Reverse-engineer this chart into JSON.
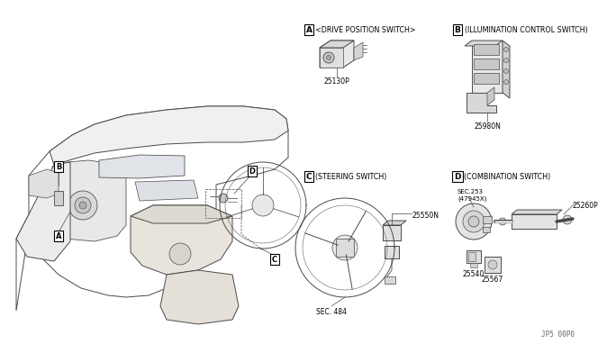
{
  "bg_color": "#ffffff",
  "lc": "#4a4a4a",
  "tc": "#000000",
  "section_A_label": "A",
  "section_A_title": "<DRIVE POSITION SWITCH>",
  "section_B_label": "B",
  "section_B_title": "(ILLUMINATION CONTROL SWITCH)",
  "section_C_label": "C",
  "section_C_title": "(STEERING SWITCH)",
  "section_D_label": "D",
  "section_D_title": "(COMBINATION SWITCH)",
  "part_A": "25130P",
  "part_B": "25980N",
  "part_C1": "25550N",
  "part_C2": "SEC. 484",
  "part_D1": "SEC.253\n(47945X)",
  "part_D2": "25540",
  "part_D3": "25567",
  "part_D4": "25260P",
  "footer": "JP5 00P0"
}
